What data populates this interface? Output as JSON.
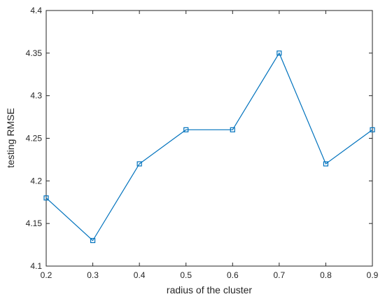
{
  "chart_data": {
    "type": "line",
    "title": "",
    "xlabel": "radius of the cluster",
    "ylabel": "testing RMSE",
    "xlim": [
      0.2,
      0.9
    ],
    "ylim": [
      4.1,
      4.4
    ],
    "x_ticks": [
      "0.2",
      "0.3",
      "0.4",
      "0.5",
      "0.6",
      "0.7",
      "0.8",
      "0.9"
    ],
    "y_ticks": [
      "4.1",
      "4.15",
      "4.2",
      "4.25",
      "4.3",
      "4.35",
      "4.4"
    ],
    "grid": false,
    "legend": "none",
    "marker": "square",
    "series": [
      {
        "x": [
          0.2,
          0.3,
          0.4,
          0.5,
          0.6,
          0.7,
          0.8,
          0.9
        ],
        "values": [
          4.18,
          4.13,
          4.22,
          4.26,
          4.26,
          4.35,
          4.22,
          4.26
        ],
        "color": "#0072BD"
      }
    ]
  }
}
